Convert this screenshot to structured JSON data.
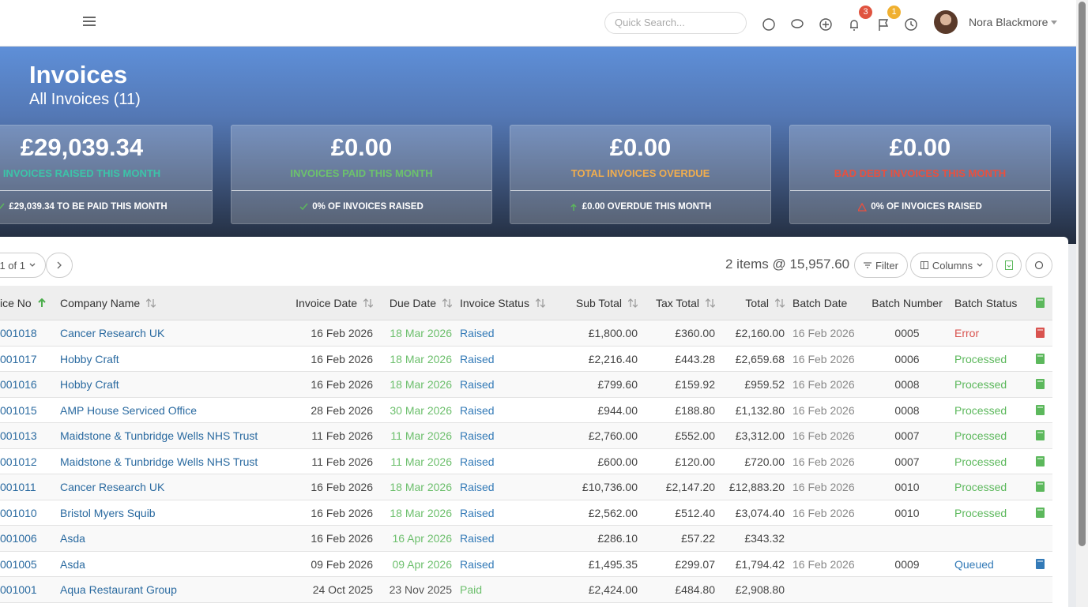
{
  "topbar": {
    "search_placeholder": "Quick Search...",
    "notifications_badge": "3",
    "flags_badge": "1",
    "user_name": "Nora Blackmore"
  },
  "header": {
    "title": "Invoices",
    "subtitle": "All Invoices (11)"
  },
  "cards": [
    {
      "amount": "£29,039.34",
      "label": "INVOICES RAISED THIS MONTH",
      "label_color": "#3cc4a8",
      "footer": "£29,039.34 TO BE PAID THIS MONTH",
      "icon": "check",
      "icon_color": "#5cb85c"
    },
    {
      "amount": "£0.00",
      "label": "INVOICES PAID THIS MONTH",
      "label_color": "#6cc26c",
      "footer": "0% OF INVOICES RAISED",
      "icon": "check",
      "icon_color": "#5cb85c"
    },
    {
      "amount": "£0.00",
      "label": "TOTAL INVOICES OVERDUE",
      "label_color": "#f0ad4e",
      "footer": "£0.00 OVERDUE THIS MONTH",
      "icon": "arrow-up",
      "icon_color": "#5cb85c"
    },
    {
      "amount": "£0.00",
      "label": "BAD DEBT INVOICES THIS MONTH",
      "label_color": "#e8503f",
      "footer": "0% OF INVOICES RAISED",
      "icon": "warning",
      "icon_color": "#e8503f"
    }
  ],
  "toolbar": {
    "pager": "1 of 1",
    "summary": "2 items @ 15,957.60",
    "filter": "Filter",
    "columns": "Columns"
  },
  "table": {
    "columns": [
      {
        "key": "no",
        "label": "ice No",
        "sort": "asc"
      },
      {
        "key": "company",
        "label": "Company Name",
        "sort": "both"
      },
      {
        "key": "invoice_date",
        "label": "Invoice Date",
        "sort": "both"
      },
      {
        "key": "due_date",
        "label": "Due Date",
        "sort": "both"
      },
      {
        "key": "status",
        "label": "Invoice Status",
        "sort": "both"
      },
      {
        "key": "sub_total",
        "label": "Sub Total",
        "sort": "both"
      },
      {
        "key": "tax_total",
        "label": "Tax Total",
        "sort": "both"
      },
      {
        "key": "total",
        "label": "Total",
        "sort": "both"
      },
      {
        "key": "batch_date",
        "label": "Batch Date"
      },
      {
        "key": "batch_number",
        "label": "Batch Number"
      },
      {
        "key": "batch_status",
        "label": "Batch Status"
      }
    ],
    "rows": [
      {
        "no": "001018",
        "company": "Cancer Research UK",
        "invoice_date": "16 Feb 2026",
        "due_date": "18 Mar 2026",
        "due_color": "#6cbf6c",
        "status": "Raised",
        "status_color": "#337ab7",
        "sub_total": "£1,800.00",
        "tax_total": "£360.00",
        "total": "£2,160.00",
        "batch_date": "16 Feb 2026",
        "batch_number": "0005",
        "batch_status": "Error",
        "batch_color": "#d9534f"
      },
      {
        "no": "001017",
        "company": "Hobby Craft",
        "invoice_date": "16 Feb 2026",
        "due_date": "18 Mar 2026",
        "due_color": "#6cbf6c",
        "status": "Raised",
        "status_color": "#337ab7",
        "sub_total": "£2,216.40",
        "tax_total": "£443.28",
        "total": "£2,659.68",
        "batch_date": "16 Feb 2026",
        "batch_number": "0006",
        "batch_status": "Processed",
        "batch_color": "#5cb85c"
      },
      {
        "no": "001016",
        "company": "Hobby Craft",
        "invoice_date": "16 Feb 2026",
        "due_date": "18 Mar 2026",
        "due_color": "#6cbf6c",
        "status": "Raised",
        "status_color": "#337ab7",
        "sub_total": "£799.60",
        "tax_total": "£159.92",
        "total": "£959.52",
        "batch_date": "16 Feb 2026",
        "batch_number": "0008",
        "batch_status": "Processed",
        "batch_color": "#5cb85c"
      },
      {
        "no": "001015",
        "company": "AMP House Serviced Office",
        "invoice_date": "28 Feb 2026",
        "due_date": "30 Mar 2026",
        "due_color": "#6cbf6c",
        "status": "Raised",
        "status_color": "#337ab7",
        "sub_total": "£944.00",
        "tax_total": "£188.80",
        "total": "£1,132.80",
        "batch_date": "16 Feb 2026",
        "batch_number": "0008",
        "batch_status": "Processed",
        "batch_color": "#5cb85c"
      },
      {
        "no": "001013",
        "company": "Maidstone & Tunbridge Wells NHS Trust",
        "invoice_date": "11 Feb 2026",
        "due_date": "11 Mar 2026",
        "due_color": "#6cbf6c",
        "status": "Raised",
        "status_color": "#337ab7",
        "sub_total": "£2,760.00",
        "tax_total": "£552.00",
        "total": "£3,312.00",
        "batch_date": "16 Feb 2026",
        "batch_number": "0007",
        "batch_status": "Processed",
        "batch_color": "#5cb85c"
      },
      {
        "no": "001012",
        "company": "Maidstone & Tunbridge Wells NHS Trust",
        "invoice_date": "11 Feb 2026",
        "due_date": "11 Mar 2026",
        "due_color": "#6cbf6c",
        "status": "Raised",
        "status_color": "#337ab7",
        "sub_total": "£600.00",
        "tax_total": "£120.00",
        "total": "£720.00",
        "batch_date": "16 Feb 2026",
        "batch_number": "0007",
        "batch_status": "Processed",
        "batch_color": "#5cb85c"
      },
      {
        "no": "001011",
        "company": "Cancer Research UK",
        "invoice_date": "16 Feb 2026",
        "due_date": "18 Mar 2026",
        "due_color": "#6cbf6c",
        "status": "Raised",
        "status_color": "#337ab7",
        "sub_total": "£10,736.00",
        "tax_total": "£2,147.20",
        "total": "£12,883.20",
        "batch_date": "16 Feb 2026",
        "batch_number": "0010",
        "batch_status": "Processed",
        "batch_color": "#5cb85c"
      },
      {
        "no": "001010",
        "company": "Bristol Myers Squib",
        "invoice_date": "16 Feb 2026",
        "due_date": "18 Mar 2026",
        "due_color": "#6cbf6c",
        "status": "Raised",
        "status_color": "#337ab7",
        "sub_total": "£2,562.00",
        "tax_total": "£512.40",
        "total": "£3,074.40",
        "batch_date": "16 Feb 2026",
        "batch_number": "0010",
        "batch_status": "Processed",
        "batch_color": "#5cb85c"
      },
      {
        "no": "001006",
        "company": "Asda",
        "invoice_date": "16 Feb 2026",
        "due_date": "16 Apr 2026",
        "due_color": "#6cbf6c",
        "status": "Raised",
        "status_color": "#337ab7",
        "sub_total": "£286.10",
        "tax_total": "£57.22",
        "total": "£343.32"
      },
      {
        "no": "001005",
        "company": "Asda",
        "invoice_date": "09 Feb 2026",
        "due_date": "09 Apr 2026",
        "due_color": "#6cbf6c",
        "status": "Raised",
        "status_color": "#337ab7",
        "sub_total": "£1,495.35",
        "tax_total": "£299.07",
        "total": "£1,794.42",
        "batch_date": "16 Feb 2026",
        "batch_number": "0009",
        "batch_status": "Queued",
        "batch_color": "#337ab7"
      },
      {
        "no": "001001",
        "company": "Aqua Restaurant Group",
        "invoice_date": "24 Oct 2025",
        "due_date": "23 Nov 2025",
        "due_color": "#555555",
        "status": "Paid",
        "status_color": "#6cbf6c",
        "sub_total": "£2,424.00",
        "tax_total": "£484.80",
        "total": "£2,908.80"
      }
    ]
  }
}
